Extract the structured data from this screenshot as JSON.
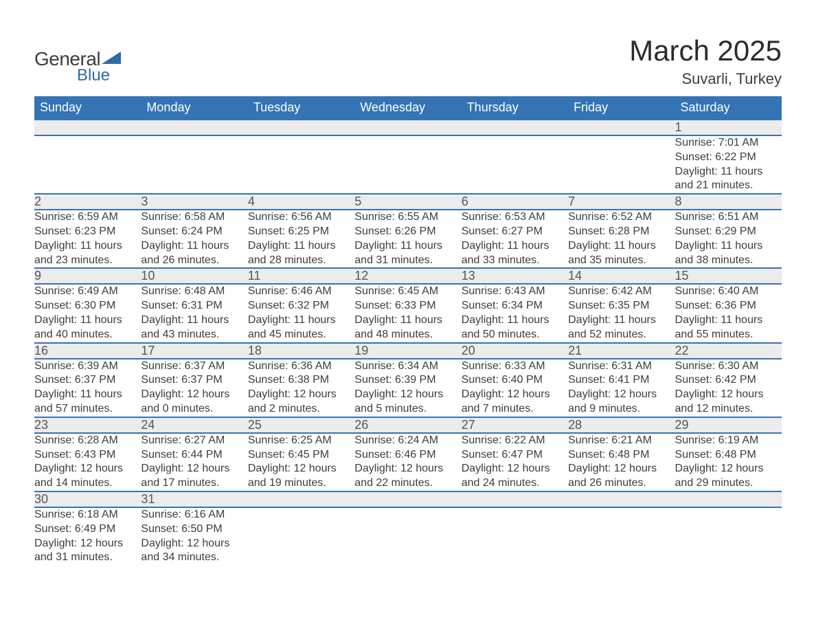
{
  "logo": {
    "text_general": "General",
    "text_blue": "Blue"
  },
  "title": "March 2025",
  "subtitle": "Suvarli, Turkey",
  "colors": {
    "header_bg": "#3474b5",
    "header_text": "#ffffff",
    "daynum_bg": "#ececec",
    "daynum_text": "#555555",
    "body_text": "#3d3d3d",
    "row_border": "#3474b5",
    "logo_accent": "#2f6aa8",
    "page_bg": "#ffffff"
  },
  "layout": {
    "columns": 7,
    "weeks": 6,
    "header_fontsize": 18,
    "daynum_fontsize": 18,
    "cell_fontsize": 16,
    "title_fontsize": 42,
    "subtitle_fontsize": 22
  },
  "weekdays": [
    "Sunday",
    "Monday",
    "Tuesday",
    "Wednesday",
    "Thursday",
    "Friday",
    "Saturday"
  ],
  "weeks": [
    [
      null,
      null,
      null,
      null,
      null,
      null,
      {
        "n": "1",
        "sunrise": "7:01 AM",
        "sunset": "6:22 PM",
        "dlh": "11",
        "dlm": "21"
      }
    ],
    [
      {
        "n": "2",
        "sunrise": "6:59 AM",
        "sunset": "6:23 PM",
        "dlh": "11",
        "dlm": "23"
      },
      {
        "n": "3",
        "sunrise": "6:58 AM",
        "sunset": "6:24 PM",
        "dlh": "11",
        "dlm": "26"
      },
      {
        "n": "4",
        "sunrise": "6:56 AM",
        "sunset": "6:25 PM",
        "dlh": "11",
        "dlm": "28"
      },
      {
        "n": "5",
        "sunrise": "6:55 AM",
        "sunset": "6:26 PM",
        "dlh": "11",
        "dlm": "31"
      },
      {
        "n": "6",
        "sunrise": "6:53 AM",
        "sunset": "6:27 PM",
        "dlh": "11",
        "dlm": "33"
      },
      {
        "n": "7",
        "sunrise": "6:52 AM",
        "sunset": "6:28 PM",
        "dlh": "11",
        "dlm": "35"
      },
      {
        "n": "8",
        "sunrise": "6:51 AM",
        "sunset": "6:29 PM",
        "dlh": "11",
        "dlm": "38"
      }
    ],
    [
      {
        "n": "9",
        "sunrise": "6:49 AM",
        "sunset": "6:30 PM",
        "dlh": "11",
        "dlm": "40"
      },
      {
        "n": "10",
        "sunrise": "6:48 AM",
        "sunset": "6:31 PM",
        "dlh": "11",
        "dlm": "43"
      },
      {
        "n": "11",
        "sunrise": "6:46 AM",
        "sunset": "6:32 PM",
        "dlh": "11",
        "dlm": "45"
      },
      {
        "n": "12",
        "sunrise": "6:45 AM",
        "sunset": "6:33 PM",
        "dlh": "11",
        "dlm": "48"
      },
      {
        "n": "13",
        "sunrise": "6:43 AM",
        "sunset": "6:34 PM",
        "dlh": "11",
        "dlm": "50"
      },
      {
        "n": "14",
        "sunrise": "6:42 AM",
        "sunset": "6:35 PM",
        "dlh": "11",
        "dlm": "52"
      },
      {
        "n": "15",
        "sunrise": "6:40 AM",
        "sunset": "6:36 PM",
        "dlh": "11",
        "dlm": "55"
      }
    ],
    [
      {
        "n": "16",
        "sunrise": "6:39 AM",
        "sunset": "6:37 PM",
        "dlh": "11",
        "dlm": "57"
      },
      {
        "n": "17",
        "sunrise": "6:37 AM",
        "sunset": "6:37 PM",
        "dlh": "12",
        "dlm": "0"
      },
      {
        "n": "18",
        "sunrise": "6:36 AM",
        "sunset": "6:38 PM",
        "dlh": "12",
        "dlm": "2"
      },
      {
        "n": "19",
        "sunrise": "6:34 AM",
        "sunset": "6:39 PM",
        "dlh": "12",
        "dlm": "5"
      },
      {
        "n": "20",
        "sunrise": "6:33 AM",
        "sunset": "6:40 PM",
        "dlh": "12",
        "dlm": "7"
      },
      {
        "n": "21",
        "sunrise": "6:31 AM",
        "sunset": "6:41 PM",
        "dlh": "12",
        "dlm": "9"
      },
      {
        "n": "22",
        "sunrise": "6:30 AM",
        "sunset": "6:42 PM",
        "dlh": "12",
        "dlm": "12"
      }
    ],
    [
      {
        "n": "23",
        "sunrise": "6:28 AM",
        "sunset": "6:43 PM",
        "dlh": "12",
        "dlm": "14"
      },
      {
        "n": "24",
        "sunrise": "6:27 AM",
        "sunset": "6:44 PM",
        "dlh": "12",
        "dlm": "17"
      },
      {
        "n": "25",
        "sunrise": "6:25 AM",
        "sunset": "6:45 PM",
        "dlh": "12",
        "dlm": "19"
      },
      {
        "n": "26",
        "sunrise": "6:24 AM",
        "sunset": "6:46 PM",
        "dlh": "12",
        "dlm": "22"
      },
      {
        "n": "27",
        "sunrise": "6:22 AM",
        "sunset": "6:47 PM",
        "dlh": "12",
        "dlm": "24"
      },
      {
        "n": "28",
        "sunrise": "6:21 AM",
        "sunset": "6:48 PM",
        "dlh": "12",
        "dlm": "26"
      },
      {
        "n": "29",
        "sunrise": "6:19 AM",
        "sunset": "6:48 PM",
        "dlh": "12",
        "dlm": "29"
      }
    ],
    [
      {
        "n": "30",
        "sunrise": "6:18 AM",
        "sunset": "6:49 PM",
        "dlh": "12",
        "dlm": "31"
      },
      {
        "n": "31",
        "sunrise": "6:16 AM",
        "sunset": "6:50 PM",
        "dlh": "12",
        "dlm": "34"
      },
      null,
      null,
      null,
      null,
      null
    ]
  ],
  "labels": {
    "sunrise_prefix": "Sunrise: ",
    "sunset_prefix": "Sunset: ",
    "daylight_prefix": "Daylight: ",
    "hours_word": " hours",
    "and_word": "and ",
    "minutes_word": " minutes."
  }
}
